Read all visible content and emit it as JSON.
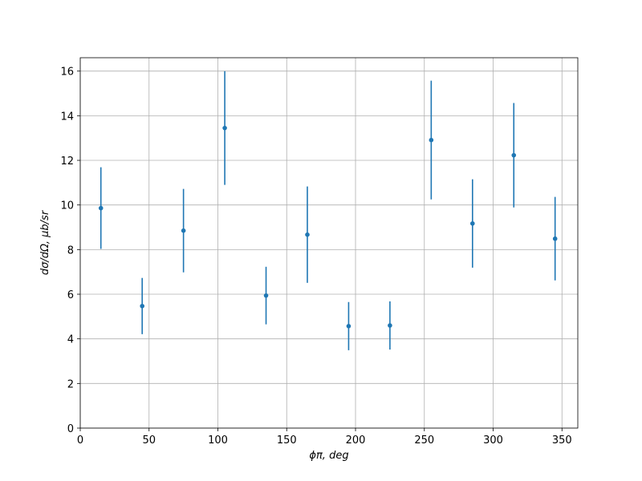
{
  "chart_data": {
    "type": "errorbar",
    "xlabel": "ϕπ, deg",
    "ylabel": "dσ/dΩ, μb/sr",
    "x": [
      15,
      45,
      75,
      105,
      135,
      165,
      195,
      225,
      255,
      285,
      315,
      345
    ],
    "series": [
      {
        "color": "#1f77b4",
        "values": [
          9.86,
          5.47,
          8.85,
          13.45,
          5.94,
          8.67,
          4.57,
          4.6,
          12.91,
          9.17,
          12.23,
          8.49
        ],
        "errors": [
          1.83,
          1.26,
          1.87,
          2.55,
          1.29,
          2.16,
          1.08,
          1.08,
          2.66,
          1.98,
          2.34,
          1.87
        ]
      }
    ],
    "xlim": [
      0,
      361.5
    ],
    "ylim": [
      0,
      16.6
    ],
    "xticks": [
      0,
      50,
      100,
      150,
      200,
      250,
      300,
      350
    ],
    "yticks": [
      0,
      2,
      4,
      6,
      8,
      10,
      12,
      14,
      16
    ],
    "grid": true
  }
}
